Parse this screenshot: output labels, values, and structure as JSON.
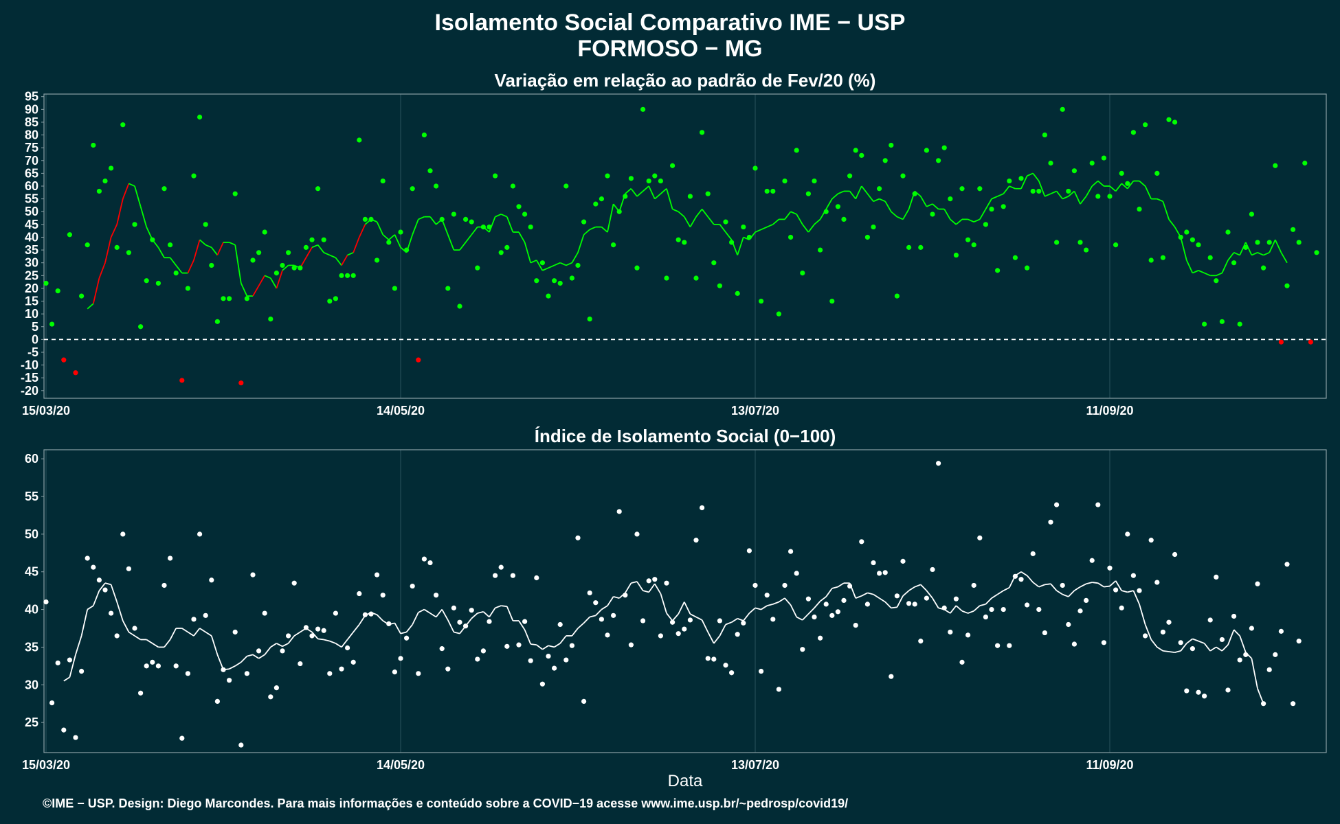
{
  "title_line1": "Isolamento Social Comparativo IME − USP",
  "title_line2": "FORMOSO − MG",
  "xlabel": "Data",
  "footer": "©IME − USP. Design: Diego Marcondes. Para mais informações e conteúdo sobre a COVID−19 acesse www.ime.usp.br/~pedrosp/covid19/",
  "colors": {
    "background": "#022b35",
    "positive": "#00ff00",
    "negative": "#ff0000",
    "index": "#ffffff",
    "grid": "#1c4650",
    "frame": "#8aa0a6"
  },
  "x_ticks": [
    "15/03/20",
    "14/05/20",
    "13/07/20",
    "11/09/20"
  ],
  "chart_data": [
    {
      "type": "scatter",
      "title": "Variação em relação ao padrão de Fev/20 (%)",
      "x_start": "15/03/20",
      "ylim": [
        -23,
        96
      ],
      "y_ticks": [
        95,
        90,
        85,
        80,
        75,
        70,
        65,
        60,
        55,
        50,
        45,
        40,
        35,
        30,
        25,
        20,
        15,
        10,
        5,
        0,
        -5,
        -10,
        -15,
        -20
      ],
      "reference_line": 0,
      "points": [
        22,
        6,
        19,
        -8,
        41,
        -13,
        17,
        37,
        76,
        58,
        62,
        67,
        36,
        84,
        34,
        45,
        5,
        23,
        39,
        22,
        59,
        37,
        26,
        -16,
        20,
        64,
        87,
        45,
        29,
        7,
        16,
        16,
        57,
        -17,
        16,
        31,
        34,
        42,
        8,
        26,
        29,
        34,
        28,
        28,
        36,
        39,
        59,
        39,
        15,
        16,
        25,
        25,
        25,
        78,
        47,
        47,
        31,
        62,
        38,
        20,
        42,
        35,
        59,
        -8,
        80,
        66,
        60,
        47,
        20,
        49,
        13,
        47,
        46,
        28,
        44,
        44,
        64,
        34,
        36,
        60,
        52,
        49,
        44,
        23,
        30,
        17,
        23,
        22,
        60,
        24,
        29,
        46,
        8,
        53,
        55,
        64,
        37,
        50,
        56,
        63,
        28,
        90,
        62,
        64,
        62,
        24,
        68,
        39,
        38,
        56,
        24,
        81,
        57,
        30,
        21,
        46,
        38,
        18,
        44,
        40,
        67,
        15,
        58,
        58,
        10,
        62,
        40,
        74,
        26,
        57,
        62,
        35,
        50,
        15,
        52,
        47,
        64,
        74,
        72,
        40,
        44,
        59,
        70,
        76,
        17,
        64,
        36,
        57,
        36,
        74,
        49,
        70,
        75,
        55,
        33,
        59,
        39,
        37,
        59,
        45,
        51,
        27,
        52,
        62,
        32,
        63,
        28,
        58,
        58,
        80,
        69,
        38,
        90,
        58,
        66,
        38,
        35,
        69,
        56,
        71,
        56,
        37,
        65,
        61,
        81,
        51,
        84,
        31,
        65,
        32,
        86,
        85,
        40,
        42,
        39,
        37,
        6,
        32,
        23,
        7,
        42,
        30,
        6,
        36,
        49,
        38,
        28,
        38,
        68,
        -1,
        21,
        43,
        38,
        69,
        -1,
        34
      ],
      "series": [
        {
          "name": "",
          "values": [
            null,
            null,
            null,
            null,
            null,
            null,
            null,
            12,
            14,
            24,
            30,
            40,
            45,
            55,
            61,
            60,
            52,
            44,
            39,
            36,
            32,
            32,
            29,
            26,
            26,
            31,
            39,
            37,
            36,
            33,
            38,
            38,
            37,
            22,
            17,
            17,
            21,
            25,
            24,
            20,
            27,
            29,
            29,
            28,
            32,
            36,
            37,
            34,
            33,
            32,
            29,
            33,
            34,
            40,
            45,
            47,
            46,
            41,
            39,
            41,
            36,
            34,
            41,
            47,
            48,
            48,
            45,
            47,
            41,
            35,
            35,
            38,
            41,
            44,
            44,
            42,
            48,
            49,
            48,
            42,
            42,
            38,
            30,
            31,
            27,
            28,
            29,
            30,
            29,
            30,
            34,
            41,
            43,
            44,
            44,
            42,
            53,
            50,
            57,
            59,
            56,
            58,
            60,
            55,
            57,
            59,
            51,
            50,
            48,
            44,
            48,
            51,
            48,
            45,
            45,
            42,
            39,
            33,
            40,
            39,
            42,
            43,
            44,
            45,
            47,
            47,
            50,
            49,
            45,
            42,
            45,
            47,
            51,
            55,
            57,
            58,
            58,
            55,
            60,
            57,
            54,
            55,
            54,
            50,
            48,
            47,
            51,
            58,
            56,
            52,
            53,
            51,
            51,
            47,
            45,
            47,
            47,
            46,
            47,
            51,
            55,
            56,
            57,
            60,
            59,
            59,
            64,
            65,
            62,
            56,
            57,
            58,
            55,
            56,
            58,
            53,
            56,
            60,
            62,
            60,
            60,
            58,
            61,
            59,
            62,
            62,
            60,
            55,
            55,
            54,
            47,
            44,
            40,
            31,
            26,
            27,
            26,
            25,
            25,
            26,
            31,
            34,
            33,
            38,
            33,
            34,
            33,
            34,
            39,
            34,
            30,
            null,
            null,
            null,
            null,
            null,
            null,
            null,
            null,
            null,
            null,
            null,
            null,
            null,
            null,
            null,
            null,
            null,
            null,
            null
          ]
        }
      ]
    },
    {
      "type": "scatter",
      "title": "Índice de Isolamento Social (0−100)",
      "x_start": "15/03/20",
      "ylim": [
        21,
        61.2
      ],
      "y_ticks": [
        60,
        55,
        50,
        45,
        40,
        35,
        30,
        25
      ],
      "points": [
        41,
        27.6,
        32.9,
        24,
        33.3,
        23,
        31.8,
        46.8,
        45.6,
        43.9,
        42.6,
        39.5,
        36.5,
        50,
        45.4,
        37.5,
        28.9,
        32.5,
        33,
        32.5,
        43.2,
        46.8,
        32.5,
        22.9,
        31.5,
        38.7,
        50,
        39.2,
        43.9,
        27.8,
        32,
        30.6,
        37,
        22,
        31.5,
        44.6,
        34.5,
        39.5,
        28.4,
        29.6,
        34.5,
        36.5,
        43.5,
        32.8,
        37.6,
        36.5,
        37.4,
        37.2,
        31.5,
        39.5,
        32.1,
        34.9,
        33,
        42.1,
        39.3,
        39.4,
        44.6,
        41.9,
        38.1,
        31.7,
        33.5,
        36.2,
        43.1,
        31.5,
        46.7,
        46.2,
        41.9,
        34.8,
        32.1,
        40.2,
        38.3,
        37.8,
        39.9,
        33.4,
        34.5,
        38.4,
        44.5,
        45.6,
        35.1,
        44.5,
        35.3,
        38.4,
        33.2,
        44.2,
        30.1,
        33.8,
        32.2,
        38,
        33.3,
        35.2,
        49.5,
        27.8,
        42.2,
        40.9,
        38.7,
        36.6,
        39.2,
        53,
        41.9,
        35.3,
        50,
        38.5,
        43.8,
        44,
        36.5,
        43.5,
        38.3,
        36.8,
        37.4,
        38.6,
        49.2,
        53.5,
        33.5,
        33.4,
        38.5,
        32.6,
        31.6,
        36.7,
        38.2,
        47.8,
        43.2,
        31.8,
        41.9,
        38.7,
        29.4,
        43.2,
        47.7,
        44.8,
        34.7,
        41.4,
        39,
        36.2,
        40.7,
        39.2,
        39.7,
        41.2,
        43.1,
        37.9,
        49,
        40.7,
        46.2,
        44.8,
        44.9,
        31.1,
        41.8,
        46.4,
        40.8,
        40.7,
        35.8,
        41.5,
        45.3,
        59.4,
        40.2,
        37,
        41.4,
        33,
        36.6,
        43.2,
        49.5,
        39,
        40,
        35.2,
        40,
        35.2,
        44.4,
        44,
        40.6,
        47.4,
        40,
        36.9,
        51.6,
        53.9,
        43.2,
        38,
        35.4,
        39.8,
        41.2,
        46.5,
        53.9,
        35.6,
        45.5,
        42.6,
        40.2,
        50,
        44.5,
        42.5,
        36.5,
        49.2,
        43.6,
        37,
        38.3,
        47.3,
        35.6,
        29.2,
        34.8,
        29,
        28.5,
        38.6,
        44.3,
        36,
        29.3,
        39.1,
        33.3,
        34,
        37.5,
        43.4,
        27.5,
        32,
        34,
        37.1,
        46,
        27.5,
        35.8
      ],
      "series": [
        {
          "name": "",
          "values": [
            null,
            null,
            null,
            30.5,
            31,
            34,
            36.5,
            40,
            40.5,
            42.5,
            43.5,
            43.3,
            41,
            38.5,
            37,
            36.5,
            36,
            36,
            35.5,
            35,
            35,
            36,
            37.5,
            37.5,
            37,
            36.5,
            37.5,
            37,
            36.5,
            34,
            32,
            32.1,
            32.5,
            33,
            33.8,
            34,
            33.5,
            34,
            35,
            35.5,
            35.1,
            35.5,
            36.5,
            37,
            37.5,
            37,
            36.1,
            36,
            35.8,
            35.5,
            35,
            36,
            37,
            38,
            39.2,
            39.6,
            39.3,
            38.5,
            38,
            38.2,
            36.8,
            37,
            38,
            39.6,
            40,
            39.5,
            39,
            40,
            38.6,
            37,
            36.8,
            37.8,
            38.8,
            39.5,
            39.7,
            39,
            40.2,
            40.5,
            40.4,
            38.5,
            38.5,
            37.3,
            35.4,
            35.3,
            34.7,
            35.2,
            35,
            35.5,
            36.5,
            36.5,
            37.5,
            38.2,
            39,
            39.2,
            40,
            40.5,
            41.7,
            41.5,
            42.2,
            43.5,
            43.7,
            42.5,
            42.3,
            43.4,
            42.1,
            39.5,
            38.5,
            39.4,
            41,
            39.4,
            39,
            38.6,
            37,
            35.5,
            36.5,
            38,
            38.3,
            38.8,
            38.5,
            39.5,
            40.2,
            40,
            40.5,
            40.7,
            41,
            41.5,
            40.6,
            39,
            38.6,
            39.4,
            40.2,
            41.1,
            41.7,
            42.8,
            43,
            43.5,
            43.5,
            41.5,
            41.8,
            42.2,
            42,
            41.5,
            41,
            40.2,
            40.3,
            41.8,
            42.5,
            43,
            43.3,
            42.5,
            41.5,
            40.2,
            40,
            39.5,
            40.5,
            39.8,
            39.5,
            39.8,
            40.5,
            40.7,
            41.5,
            42,
            42.5,
            42.9,
            44.5,
            45,
            44.5,
            43.6,
            43,
            43.3,
            43.4,
            42.5,
            42,
            41.7,
            42.5,
            43,
            43.4,
            43.6,
            43.5,
            43,
            43.1,
            43.8,
            42.5,
            42.3,
            42.5,
            40.7,
            38,
            36,
            35,
            34.5,
            34.4,
            34.3,
            34.5,
            35.5,
            36.1,
            35.8,
            35.5,
            34.5,
            35,
            34.5,
            35.3,
            37.3,
            36.5,
            34.3,
            33.5,
            29.5,
            27.5
          ]
        }
      ]
    }
  ]
}
